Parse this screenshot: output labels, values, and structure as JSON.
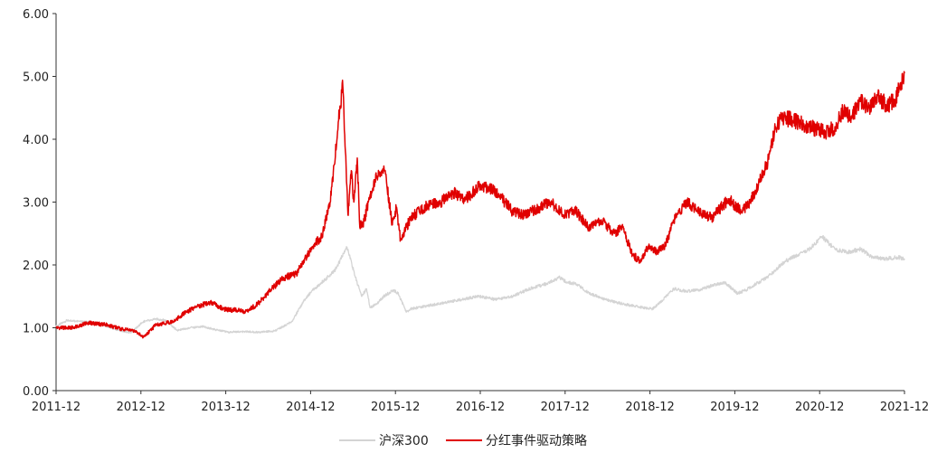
{
  "chart_data": {
    "type": "line",
    "title": "",
    "xlabel": "",
    "ylabel": "",
    "ylim": [
      0,
      6
    ],
    "y_ticks": [
      "0.00",
      "1.00",
      "2.00",
      "3.00",
      "4.00",
      "5.00",
      "6.00"
    ],
    "x_ticks": [
      "2011-12",
      "2012-12",
      "2013-12",
      "2014-12",
      "2015-12",
      "2016-12",
      "2017-12",
      "2018-12",
      "2019-12",
      "2020-12",
      "2021-12"
    ],
    "grid": false,
    "legend_position": "bottom",
    "series": [
      {
        "name": "沪深300",
        "color": "#d4d4d4",
        "x": [
          2011.92,
          2012.05,
          2012.2,
          2012.4,
          2012.6,
          2012.8,
          2012.95,
          2013.1,
          2013.2,
          2013.35,
          2013.5,
          2013.65,
          2013.8,
          2013.95,
          2014.1,
          2014.3,
          2014.5,
          2014.7,
          2014.85,
          2014.95,
          2015.05,
          2015.2,
          2015.35,
          2015.45,
          2015.52,
          2015.58,
          2015.62,
          2015.7,
          2015.78,
          2015.9,
          2015.95,
          2016.05,
          2016.1,
          2016.3,
          2016.5,
          2016.7,
          2016.9,
          2017.1,
          2017.3,
          2017.5,
          2017.7,
          2017.85,
          2017.95,
          2018.05,
          2018.2,
          2018.4,
          2018.6,
          2018.8,
          2018.95,
          2019.05,
          2019.2,
          2019.35,
          2019.5,
          2019.65,
          2019.8,
          2019.95,
          2020.05,
          2020.2,
          2020.35,
          2020.5,
          2020.65,
          2020.8,
          2020.95,
          2021.1,
          2021.25,
          2021.4,
          2021.55,
          2021.7,
          2021.85,
          2021.92
        ],
        "values": [
          1.02,
          1.12,
          1.1,
          1.08,
          0.98,
          0.92,
          1.1,
          1.14,
          1.12,
          0.96,
          1.0,
          1.02,
          0.97,
          0.93,
          0.94,
          0.93,
          0.95,
          1.1,
          1.45,
          1.6,
          1.72,
          1.9,
          2.28,
          1.8,
          1.5,
          1.62,
          1.32,
          1.38,
          1.5,
          1.6,
          1.55,
          1.25,
          1.3,
          1.35,
          1.4,
          1.45,
          1.5,
          1.45,
          1.5,
          1.62,
          1.7,
          1.8,
          1.72,
          1.7,
          1.55,
          1.45,
          1.38,
          1.33,
          1.3,
          1.42,
          1.62,
          1.58,
          1.6,
          1.67,
          1.72,
          1.55,
          1.6,
          1.72,
          1.85,
          2.05,
          2.15,
          2.25,
          2.45,
          2.25,
          2.2,
          2.25,
          2.12,
          2.1,
          2.12,
          2.1
        ]
      },
      {
        "name": "分红事件驱动策略",
        "color": "#e00000",
        "x": [
          2011.92,
          2012.1,
          2012.3,
          2012.5,
          2012.7,
          2012.85,
          2012.95,
          2013.1,
          2013.3,
          2013.45,
          2013.6,
          2013.75,
          2013.9,
          2014.05,
          2014.15,
          2014.3,
          2014.45,
          2014.6,
          2014.75,
          2014.85,
          2014.95,
          2015.05,
          2015.15,
          2015.2,
          2015.25,
          2015.3,
          2015.33,
          2015.36,
          2015.4,
          2015.43,
          2015.47,
          2015.5,
          2015.55,
          2015.6,
          2015.7,
          2015.8,
          2015.88,
          2015.93,
          2015.98,
          2016.05,
          2016.1,
          2016.2,
          2016.3,
          2016.45,
          2016.6,
          2016.75,
          2016.9,
          2017.05,
          2017.15,
          2017.3,
          2017.45,
          2017.6,
          2017.75,
          2017.9,
          2018.05,
          2018.2,
          2018.35,
          2018.5,
          2018.6,
          2018.7,
          2018.8,
          2018.9,
          2019.0,
          2019.1,
          2019.2,
          2019.35,
          2019.5,
          2019.65,
          2019.75,
          2019.85,
          2019.92,
          2020.0,
          2020.1,
          2020.2,
          2020.3,
          2020.4,
          2020.5,
          2020.6,
          2020.7,
          2020.8,
          2020.9,
          2021.0,
          2021.1,
          2021.2,
          2021.3,
          2021.4,
          2021.5,
          2021.6,
          2021.7,
          2021.8,
          2021.88,
          2021.92
        ],
        "values": [
          1.0,
          1.0,
          1.08,
          1.05,
          0.98,
          0.95,
          0.85,
          1.05,
          1.1,
          1.25,
          1.35,
          1.4,
          1.3,
          1.28,
          1.25,
          1.38,
          1.6,
          1.8,
          1.85,
          2.1,
          2.3,
          2.45,
          3.0,
          3.6,
          4.3,
          4.85,
          3.8,
          2.8,
          3.5,
          3.0,
          3.7,
          2.6,
          2.7,
          3.0,
          3.4,
          3.5,
          2.65,
          2.9,
          2.4,
          2.6,
          2.75,
          2.85,
          2.95,
          3.0,
          3.15,
          3.05,
          3.25,
          3.2,
          3.1,
          2.85,
          2.8,
          2.9,
          3.0,
          2.8,
          2.85,
          2.6,
          2.7,
          2.5,
          2.6,
          2.2,
          2.05,
          2.3,
          2.2,
          2.3,
          2.7,
          3.0,
          2.85,
          2.75,
          2.9,
          3.05,
          2.95,
          2.85,
          3.0,
          3.3,
          3.6,
          4.2,
          4.35,
          4.3,
          4.25,
          4.2,
          4.15,
          4.1,
          4.2,
          4.45,
          4.35,
          4.6,
          4.5,
          4.7,
          4.55,
          4.6,
          4.9,
          5.05
        ]
      }
    ]
  }
}
